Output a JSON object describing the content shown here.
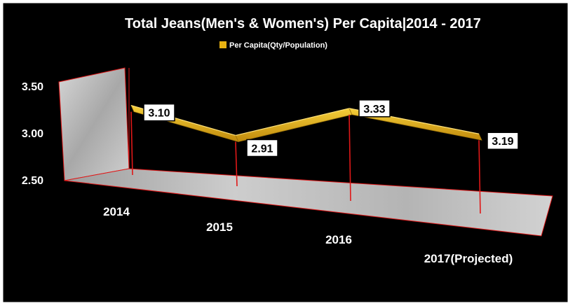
{
  "chart_data": {
    "type": "line",
    "title": "Total Jeans(Men's & Women's)  Per Capita|2014 - 2017",
    "legend": {
      "label": "Per Capita(Qty/Population)",
      "position": "top",
      "color": "#E8B211"
    },
    "categories": [
      "2014",
      "2015",
      "2016",
      "2017(Projected)"
    ],
    "series": [
      {
        "name": "Per Capita(Qty/Population)",
        "values": [
          3.1,
          2.91,
          3.33,
          3.19
        ]
      }
    ],
    "data_labels": [
      "3.10",
      "2.91",
      "3.33",
      "3.19"
    ],
    "y_ticks": [
      "2.50",
      "3.00",
      "3.50"
    ],
    "ylim": [
      2.5,
      3.5
    ],
    "style": "3d-ribbon",
    "colors": {
      "background": "#000000",
      "frame": "#FFFFFF",
      "ribbon": "#E8B211",
      "ribbon_dark": "#9C7308",
      "drop_lines": "#E01818",
      "walls": "#C8C8C8",
      "text": "#FFFFFF"
    }
  }
}
